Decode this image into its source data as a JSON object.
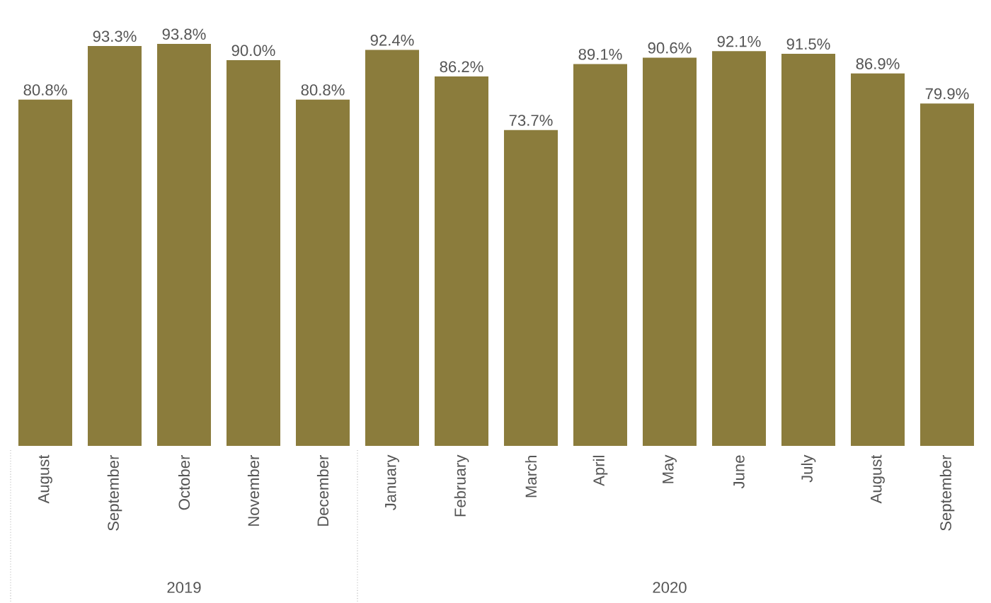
{
  "chart_data": {
    "type": "bar",
    "categories": [
      "August",
      "September",
      "October",
      "November",
      "December",
      "January",
      "February",
      "March",
      "April",
      "May",
      "June",
      "July",
      "August",
      "September"
    ],
    "values": [
      80.8,
      93.3,
      93.8,
      90.0,
      80.8,
      92.4,
      86.2,
      73.7,
      89.1,
      90.6,
      92.1,
      91.5,
      86.9,
      79.9
    ],
    "value_labels": [
      "80.8%",
      "93.3%",
      "93.8%",
      "90.0%",
      "80.8%",
      "92.4%",
      "86.2%",
      "73.7%",
      "89.1%",
      "90.6%",
      "92.1%",
      "91.5%",
      "86.9%",
      "79.9%"
    ],
    "color": "#8b7c3c",
    "annotations": [
      "2019",
      "2020"
    ]
  }
}
